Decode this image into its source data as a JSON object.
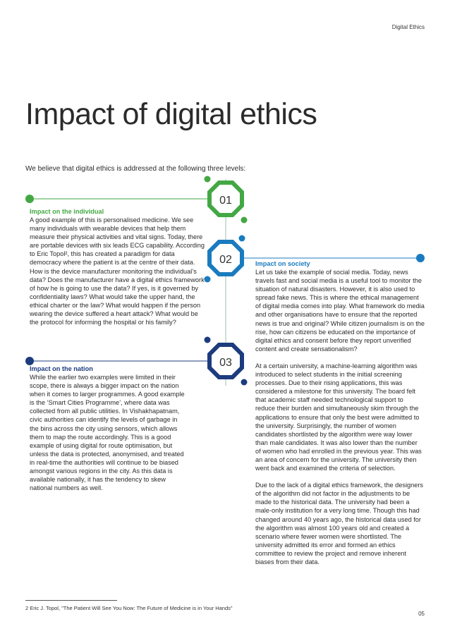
{
  "header": {
    "section": "Digital Ethics"
  },
  "title": "Impact of digital ethics",
  "intro": "We believe that digital ethics is addressed at the following three levels:",
  "levels": [
    {
      "number": "01",
      "heading": "Impact on the individual",
      "color": "#43a843",
      "text": "A good example of this is personalised medicine. We see many individuals with wearable devices that help them measure their physical activities and vital signs. Today, there are portable devices with six leads ECG capability. According to Eric Topol², this has created a paradigm for data democracy where the patient is at the centre of their data. How is the device manufacturer monitoring the individual’s data? Does the manufacturer have a digital ethics framework of how he is going to use the data? If yes, is it governed by confidentiality laws? What would take the upper hand, the ethical charter or the law? What would happen if the person wearing the device suffered a heart attack? What would be the protocol for informing the hospital or his family?"
    },
    {
      "number": "02",
      "heading": "Impact on society",
      "color": "#1a7bbf",
      "paragraphs": [
        "Let us take the example of social media. Today, news travels fast and social media is a useful tool to monitor the situation of natural disasters. However, it is also used to spread fake news. This is where the ethical management of digital media comes into play. What framework do media and other organisations have to ensure that the reported news is true and original? While citizen journalism is on the rise, how can citizens be educated on the importance of digital ethics and consent before they report unverified content and create sensationalism?",
        "At a certain university, a machine-learning algorithm was introduced to select students in the initial screening processes. Due to their rising applications, this was considered a milestone for this university. The board felt that academic staff needed technological support to reduce their burden and simultaneously skim through the applications to ensure that only the best were admitted to the university. Surprisingly, the number of women candidates shortlisted by the algorithm were way lower than male candidates. It was also lower than the number of women who had enrolled in the previous year. This was an area of concern for the university. The university then went back and examined the criteria of selection.",
        "Due to the lack of a digital ethics framework, the designers of the algorithm did not factor in the adjustments to be made to the historical data. The university had been a male-only institution for a very long time. Though this had changed around 40 years ago, the historical data used for the algorithm was almost 100 years old and created a scenario where fewer women were shortlisted. The university admitted its error and formed an ethics committee to review the project and remove inherent biases from their data."
      ]
    },
    {
      "number": "03",
      "heading": "Impact on the nation",
      "color": "#1c3c7e",
      "text": "While the earlier two examples were limited in their scope, there is always a bigger impact on the nation when it comes to larger programmes. A good example is the ‘Smart Cities Programme’, where data was collected from all public utilities. In Vishakhapatnam, civic authorities can identify the levels of garbage in the bins across the city using sensors, which allows them to map the route accordingly. This is a good example of using digital for route optimisation, but unless the data is protected, anonymised, and treated in real-time the authorities will continue to be biased amongst various regions in the city. As this data is available nationally, it has the tendency to skew national numbers as well."
    }
  ],
  "footnote": "2  Eric J. Topol, \"The Patient Will See You Now: The Future of Medicine is in Your Hands\"",
  "page_number": "05"
}
